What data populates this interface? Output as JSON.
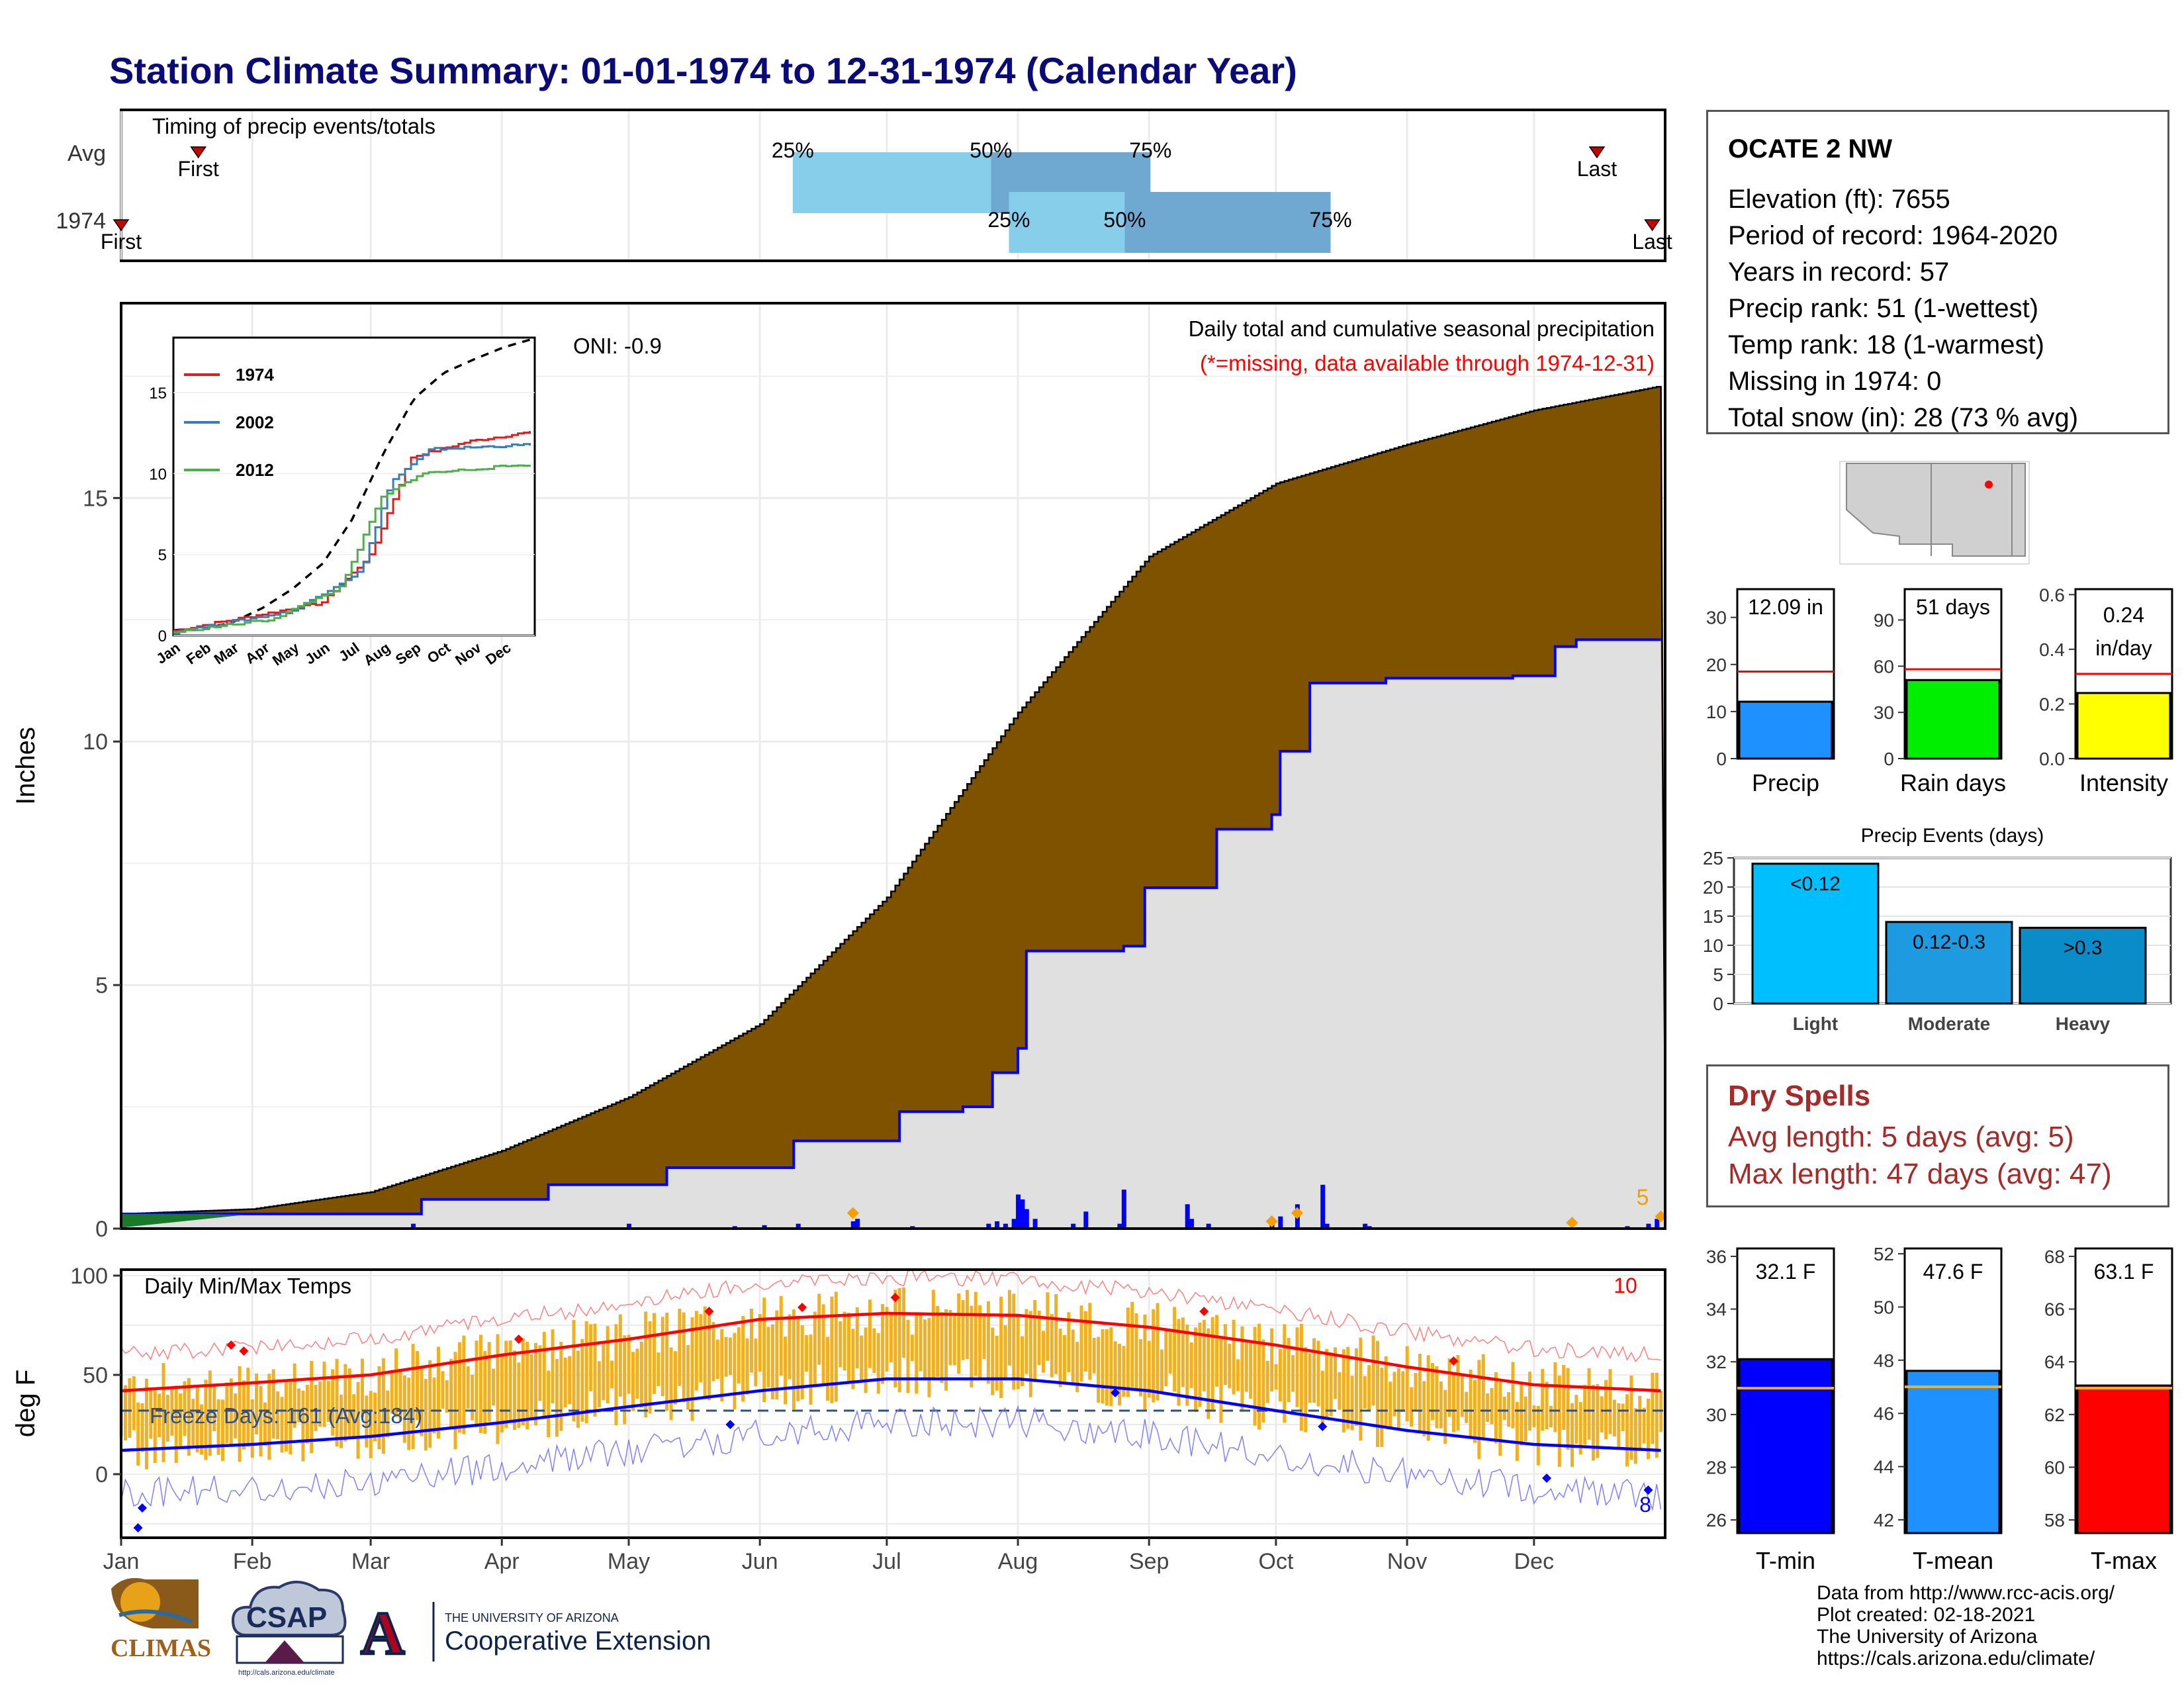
{
  "title": "Station Climate Summary: 01-01-1974 to 12-31-1974 (Calendar Year)",
  "timing": {
    "label": "Timing of precip events/totals",
    "rows": [
      "Avg",
      "1974"
    ],
    "avg": {
      "first_month": 1.6,
      "last_month": 12.47,
      "p25": 6.22,
      "p50": 7.76,
      "p75": 9.0,
      "pct_labels": [
        "25%",
        "50%",
        "75%"
      ],
      "first_label": "First",
      "last_label": "Last"
    },
    "year": {
      "first_month": 1.0,
      "last_month": 12.9,
      "p25": 7.9,
      "p50": 8.8,
      "p75": 10.4,
      "pct_labels": [
        "25%",
        "50%",
        "75%"
      ],
      "first_label": "First",
      "last_label": "Last"
    }
  },
  "precip": {
    "ylabel": "Inches",
    "annot_title": "Daily total and cumulative seasonal precipitation",
    "annot_missing": "(*=missing, data available through 1974-12-31)",
    "oni": "ONI: -0.9",
    "corner_count": "5"
  },
  "inset": {
    "legend": [
      "1974",
      "2002",
      "2012"
    ]
  },
  "temps": {
    "title": "Daily Min/Max Temps",
    "ylabel": "deg F",
    "freeze": "Freeze Days: 161 (Avg:184)",
    "max_count": "10",
    "min_count": "8"
  },
  "station": {
    "name": "OCATE 2 NW",
    "lines": [
      "Elevation (ft): 7655",
      "Period of record: 1964-2020",
      "Years in record: 57",
      "Precip rank: 51 (1-wettest)",
      "Temp rank: 18 (1-warmest)",
      "Missing in 1974: 0",
      "Total snow (in): 28 (73 % avg)"
    ]
  },
  "mini_bars": {
    "precip": {
      "label": "Precip",
      "value_label": "12.09 in"
    },
    "rain_days": {
      "label": "Rain days",
      "value_label": "51 days"
    },
    "intensity": {
      "label": "Intensity",
      "value_label_1": "0.24",
      "value_label_2": "in/day"
    }
  },
  "events_title": "Precip Events (days)",
  "dry_spells": {
    "title": "Dry Spells",
    "avg": "Avg length: 5 days (avg: 5)",
    "max": "Max length: 47 days (avg: 47)"
  },
  "temp_bars": {
    "tmin": {
      "label": "T-min",
      "value_label": "32.1 F"
    },
    "tmean": {
      "label": "T-mean",
      "value_label": "47.6 F"
    },
    "tmax": {
      "label": "T-max",
      "value_label": "63.1 F"
    }
  },
  "credits": [
    "Data from http://www.rcc-acis.org/",
    "Plot created: 02-18-2021",
    "The University of Arizona",
    "https://cals.arizona.edu/climate/"
  ],
  "logos": {
    "climas": "CLIMAS",
    "csap": "CSAP",
    "csap_url": "http://cals.arizona.edu/climate",
    "ua_small": "THE UNIVERSITY OF ARIZONA",
    "ua_big": "Cooperative Extension",
    "ua_letter": "A"
  },
  "months": [
    "Jan",
    "Feb",
    "Mar",
    "Apr",
    "May",
    "Jun",
    "Jul",
    "Aug",
    "Sep",
    "Oct",
    "Nov",
    "Dec"
  ],
  "colors": {
    "title": "#0a0a78",
    "brown": "#7f5200",
    "blue": "#0000ff",
    "red": "#ff0000",
    "orange": "#f0b020",
    "dry": "#a52a2a"
  },
  "chart_data": [
    {
      "type": "area",
      "title": "Daily total and cumulative seasonal precipitation",
      "ylabel": "Inches",
      "ylim": [
        0,
        19
      ],
      "x_units": "day of year",
      "cumulative_avg": {
        "x": [
          1,
          32,
          60,
          91,
          121,
          152,
          182,
          213,
          244,
          274,
          305,
          335,
          365
        ],
        "y": [
          0.3,
          0.4,
          0.75,
          1.6,
          2.7,
          4.2,
          6.8,
          10.6,
          13.8,
          15.3,
          16.1,
          16.8,
          17.3
        ]
      },
      "cumulative_1974": {
        "x": [
          1,
          55,
          72,
          102,
          130,
          160,
          185,
          200,
          207,
          213,
          215,
          238,
          243,
          260,
          273,
          275,
          282,
          300,
          330,
          340,
          345,
          365
        ],
        "y": [
          0.3,
          0.3,
          0.6,
          0.9,
          1.25,
          1.8,
          2.4,
          2.5,
          3.2,
          3.7,
          5.7,
          5.8,
          7.0,
          8.2,
          8.5,
          9.8,
          11.2,
          11.3,
          11.35,
          11.95,
          12.09,
          12.09
        ]
      },
      "daily_bars": {
        "x": [
          70,
          70,
          121,
          146,
          153,
          161,
          174,
          175,
          188,
          206,
          208,
          210,
          212,
          213,
          214,
          215,
          217,
          226,
          229,
          237,
          238,
          253,
          254,
          258,
          273,
          275,
          279,
          285,
          286,
          295,
          296,
          357,
          362,
          364
        ],
        "y": [
          0.1,
          0.05,
          0.1,
          0.05,
          0.07,
          0.1,
          0.15,
          0.2,
          0.05,
          0.1,
          0.15,
          0.1,
          0.2,
          0.7,
          0.6,
          0.4,
          0.2,
          0.1,
          0.35,
          0.1,
          0.8,
          0.5,
          0.2,
          0.1,
          0.15,
          0.25,
          0.5,
          0.9,
          0.1,
          0.1,
          0.05,
          0.05,
          0.1,
          0.2
        ]
      }
    },
    {
      "type": "line",
      "title": "Daily Min/Max Temps",
      "ylabel": "deg F",
      "ylim": [
        -32,
        103
      ],
      "avg_max": {
        "x": [
          1,
          32,
          60,
          91,
          121,
          152,
          182,
          213,
          244,
          274,
          305,
          335,
          365
        ],
        "y": [
          42,
          46,
          50,
          60,
          68,
          78,
          81,
          80,
          74,
          65,
          54,
          45,
          42
        ]
      },
      "avg_min": {
        "x": [
          1,
          32,
          60,
          91,
          121,
          152,
          182,
          213,
          244,
          274,
          305,
          335,
          365
        ],
        "y": [
          12,
          15,
          19,
          26,
          34,
          42,
          48,
          48,
          42,
          32,
          22,
          15,
          12
        ]
      },
      "freeze_threshold": 32
    },
    {
      "type": "bar",
      "title": "Precip Events (days)",
      "categories": [
        "Light",
        "Moderate",
        "Heavy"
      ],
      "values": [
        24,
        14,
        13
      ],
      "bar_labels": [
        "<0.12",
        "0.12-0.3",
        ">0.3"
      ],
      "ylim": [
        0,
        25
      ]
    },
    {
      "type": "bar",
      "categories": [
        "Precip",
        "Rain days",
        "Intensity"
      ],
      "values": [
        12.09,
        51,
        0.24
      ],
      "avg_lines": [
        18.5,
        58,
        0.31
      ],
      "ylims": [
        [
          0,
          36
        ],
        [
          0,
          110
        ],
        [
          0,
          0.62
        ]
      ]
    },
    {
      "type": "bar",
      "categories": [
        "T-min",
        "T-mean",
        "T-max"
      ],
      "values": [
        32.1,
        47.6,
        63.1
      ],
      "avg_lines": [
        31.0,
        47.0,
        63.0
      ],
      "ylims": [
        [
          25.5,
          36.3
        ],
        [
          41.5,
          52.2
        ],
        [
          57.5,
          68.3
        ]
      ]
    }
  ]
}
